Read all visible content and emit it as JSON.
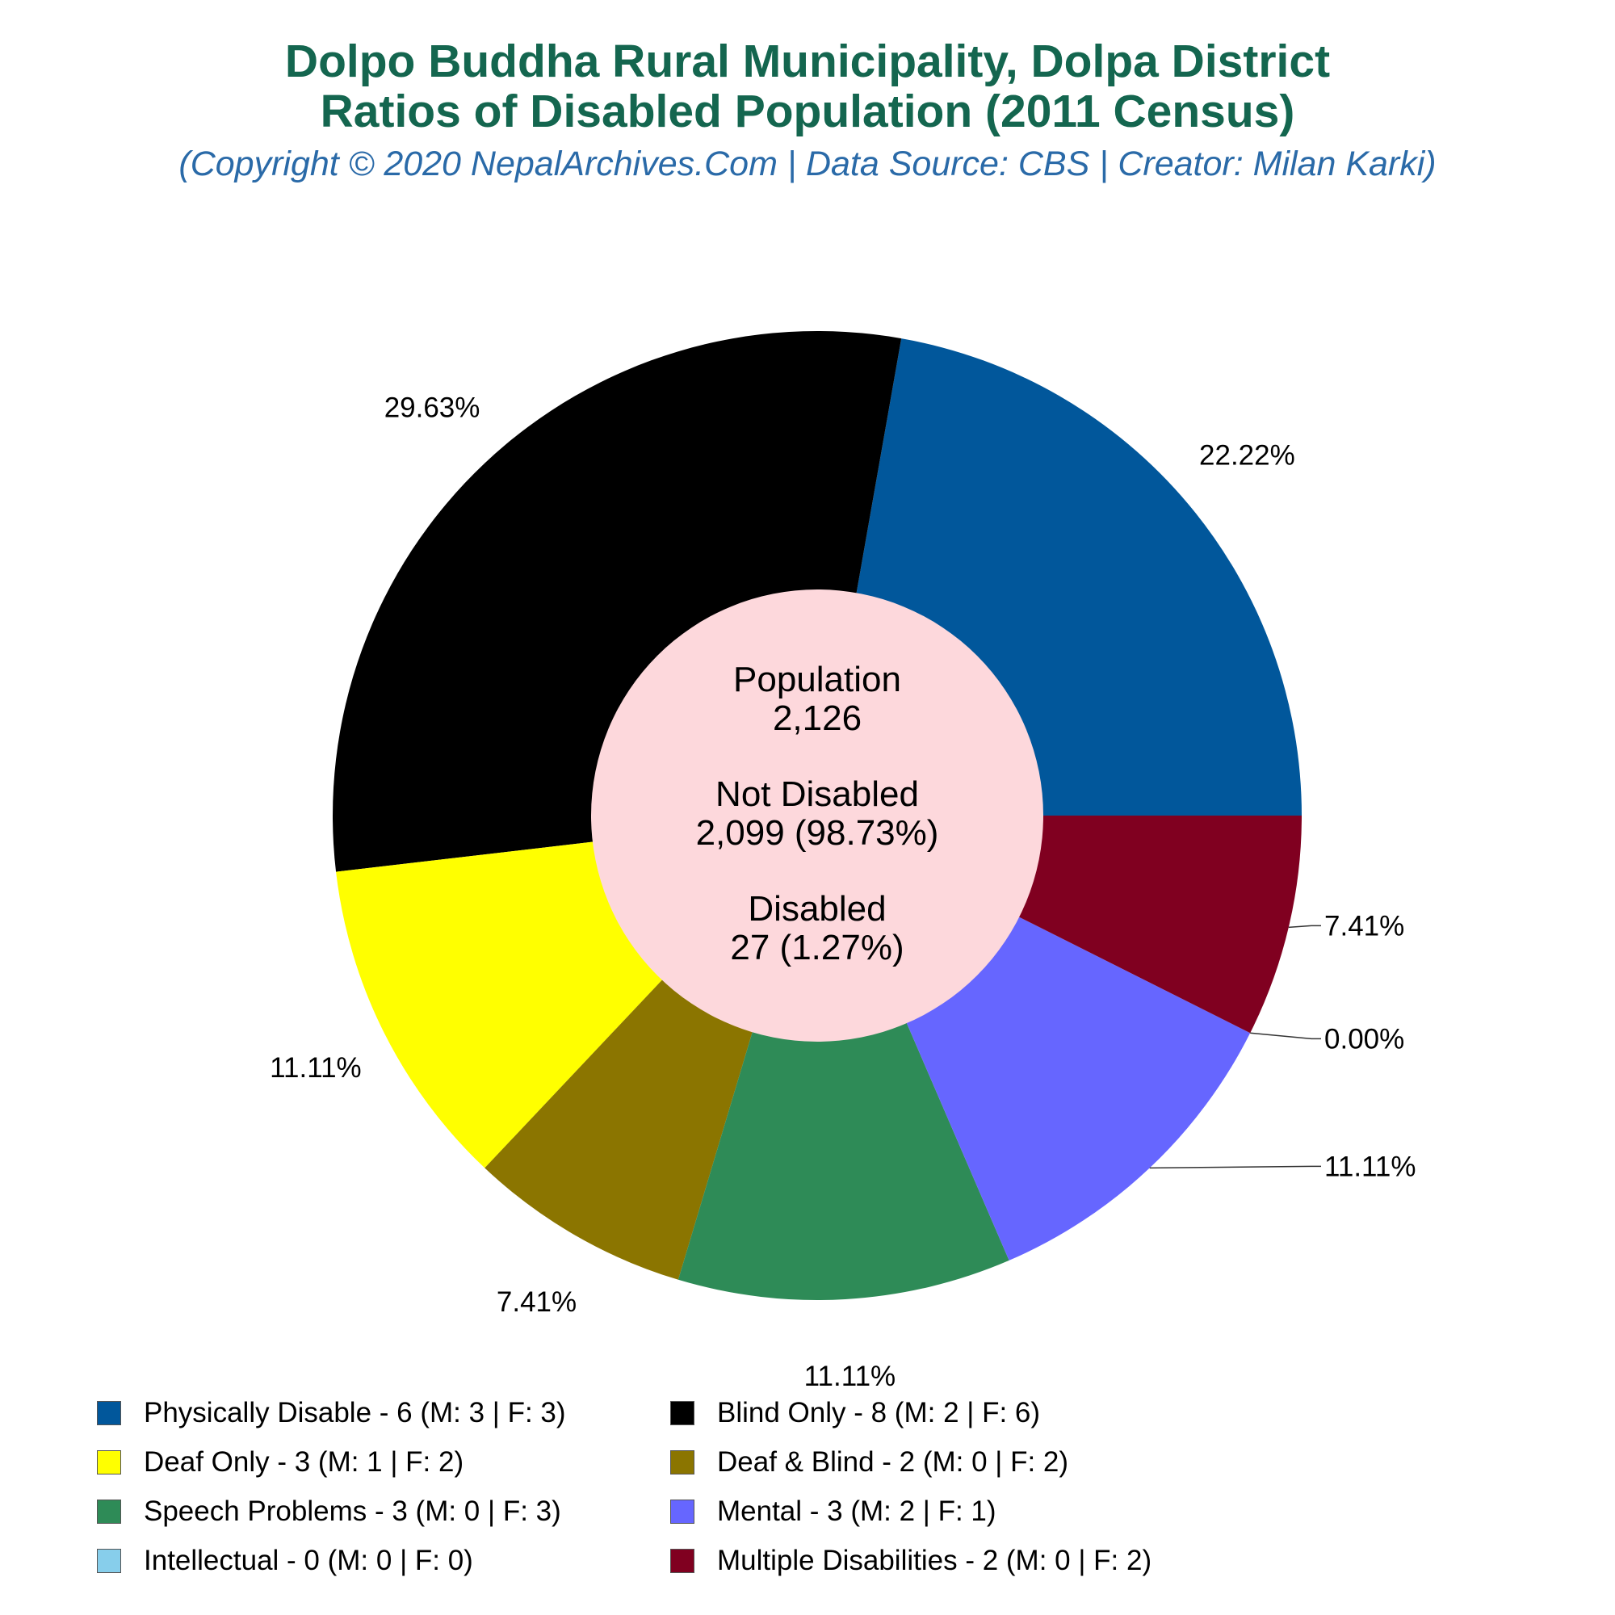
{
  "header": {
    "title_line1": "Dolpo Buddha Rural Municipality, Dolpa District",
    "title_line2": "Ratios of Disabled Population (2011 Census)",
    "subtitle": "(Copyright © 2020 NepalArchives.Com | Data Source: CBS | Creator: Milan Karki)"
  },
  "center": {
    "population_label": "Population",
    "population_value": "2,126",
    "not_disabled_label": "Not Disabled",
    "not_disabled_value": "2,099 (98.73%)",
    "disabled_label": "Disabled",
    "disabled_value": "27 (1.27%)"
  },
  "chart_data": {
    "type": "pie",
    "style": "donut",
    "total": 27,
    "start_angle_deg": 0,
    "direction": "counterclockwise",
    "slices": [
      {
        "label": "Physically Disable - 6 (M: 3 | F: 3)",
        "value": 6,
        "percent_label": "22.22%",
        "color": "#01579b"
      },
      {
        "label": "Blind Only - 8 (M: 2 | F: 6)",
        "value": 8,
        "percent_label": "29.63%",
        "color": "#000000"
      },
      {
        "label": "Deaf Only - 3 (M: 1 | F: 2)",
        "value": 3,
        "percent_label": "11.11%",
        "color": "#ffff00"
      },
      {
        "label": "Deaf & Blind - 2 (M: 0 | F: 2)",
        "value": 2,
        "percent_label": "7.41%",
        "color": "#8b7500"
      },
      {
        "label": "Speech Problems - 3 (M: 0 | F: 3)",
        "value": 3,
        "percent_label": "11.11%",
        "color": "#2e8b57"
      },
      {
        "label": "Mental - 3 (M: 2 | F: 1)",
        "value": 3,
        "percent_label": "11.11%",
        "color": "#6666ff"
      },
      {
        "label": "Intellectual - 0 (M: 0 | F: 0)",
        "value": 0,
        "percent_label": "0.00%",
        "color": "#87ceeb"
      },
      {
        "label": "Multiple Disabilities - 2 (M: 0 | F: 2)",
        "value": 2,
        "percent_label": "7.41%",
        "color": "#800020"
      }
    ],
    "center_color": "#fdd8dc",
    "legend_position": "bottom"
  }
}
